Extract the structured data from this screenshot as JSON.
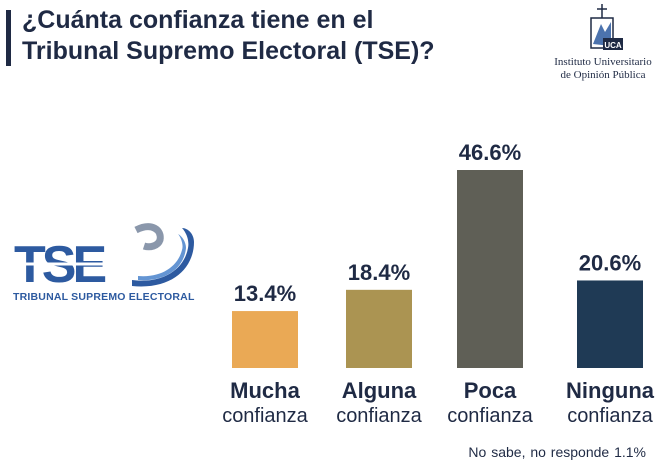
{
  "title": {
    "line1": "¿Cuánta confianza tiene en el",
    "line2": "Tribunal Supremo Electoral (TSE)?"
  },
  "logos": {
    "iudop": {
      "line1": "Instituto Universitario",
      "line2": "de Opinión Pública",
      "mark_text": "UCA"
    },
    "tse": {
      "mark_text": "TSE",
      "caption": "TRIBUNAL SUPREMO ELECTORAL"
    }
  },
  "chart_data": {
    "type": "bar",
    "categories": [
      {
        "main": "Mucha",
        "sub": "confianza"
      },
      {
        "main": "Alguna",
        "sub": "confianza"
      },
      {
        "main": "Poca",
        "sub": "confianza"
      },
      {
        "main": "Ninguna",
        "sub": "confianza"
      }
    ],
    "values": [
      13.4,
      18.4,
      46.6,
      20.6
    ],
    "value_labels": [
      "13.4%",
      "18.4%",
      "46.6%",
      "20.6%"
    ],
    "colors": [
      "#eaa955",
      "#ab9452",
      "#5f5f56",
      "#1f3a55"
    ],
    "ylim": [
      0,
      46.6
    ],
    "grid": false,
    "legend": "none"
  },
  "footnote": {
    "label": "No sabe, no responde",
    "value": "1.1%"
  }
}
